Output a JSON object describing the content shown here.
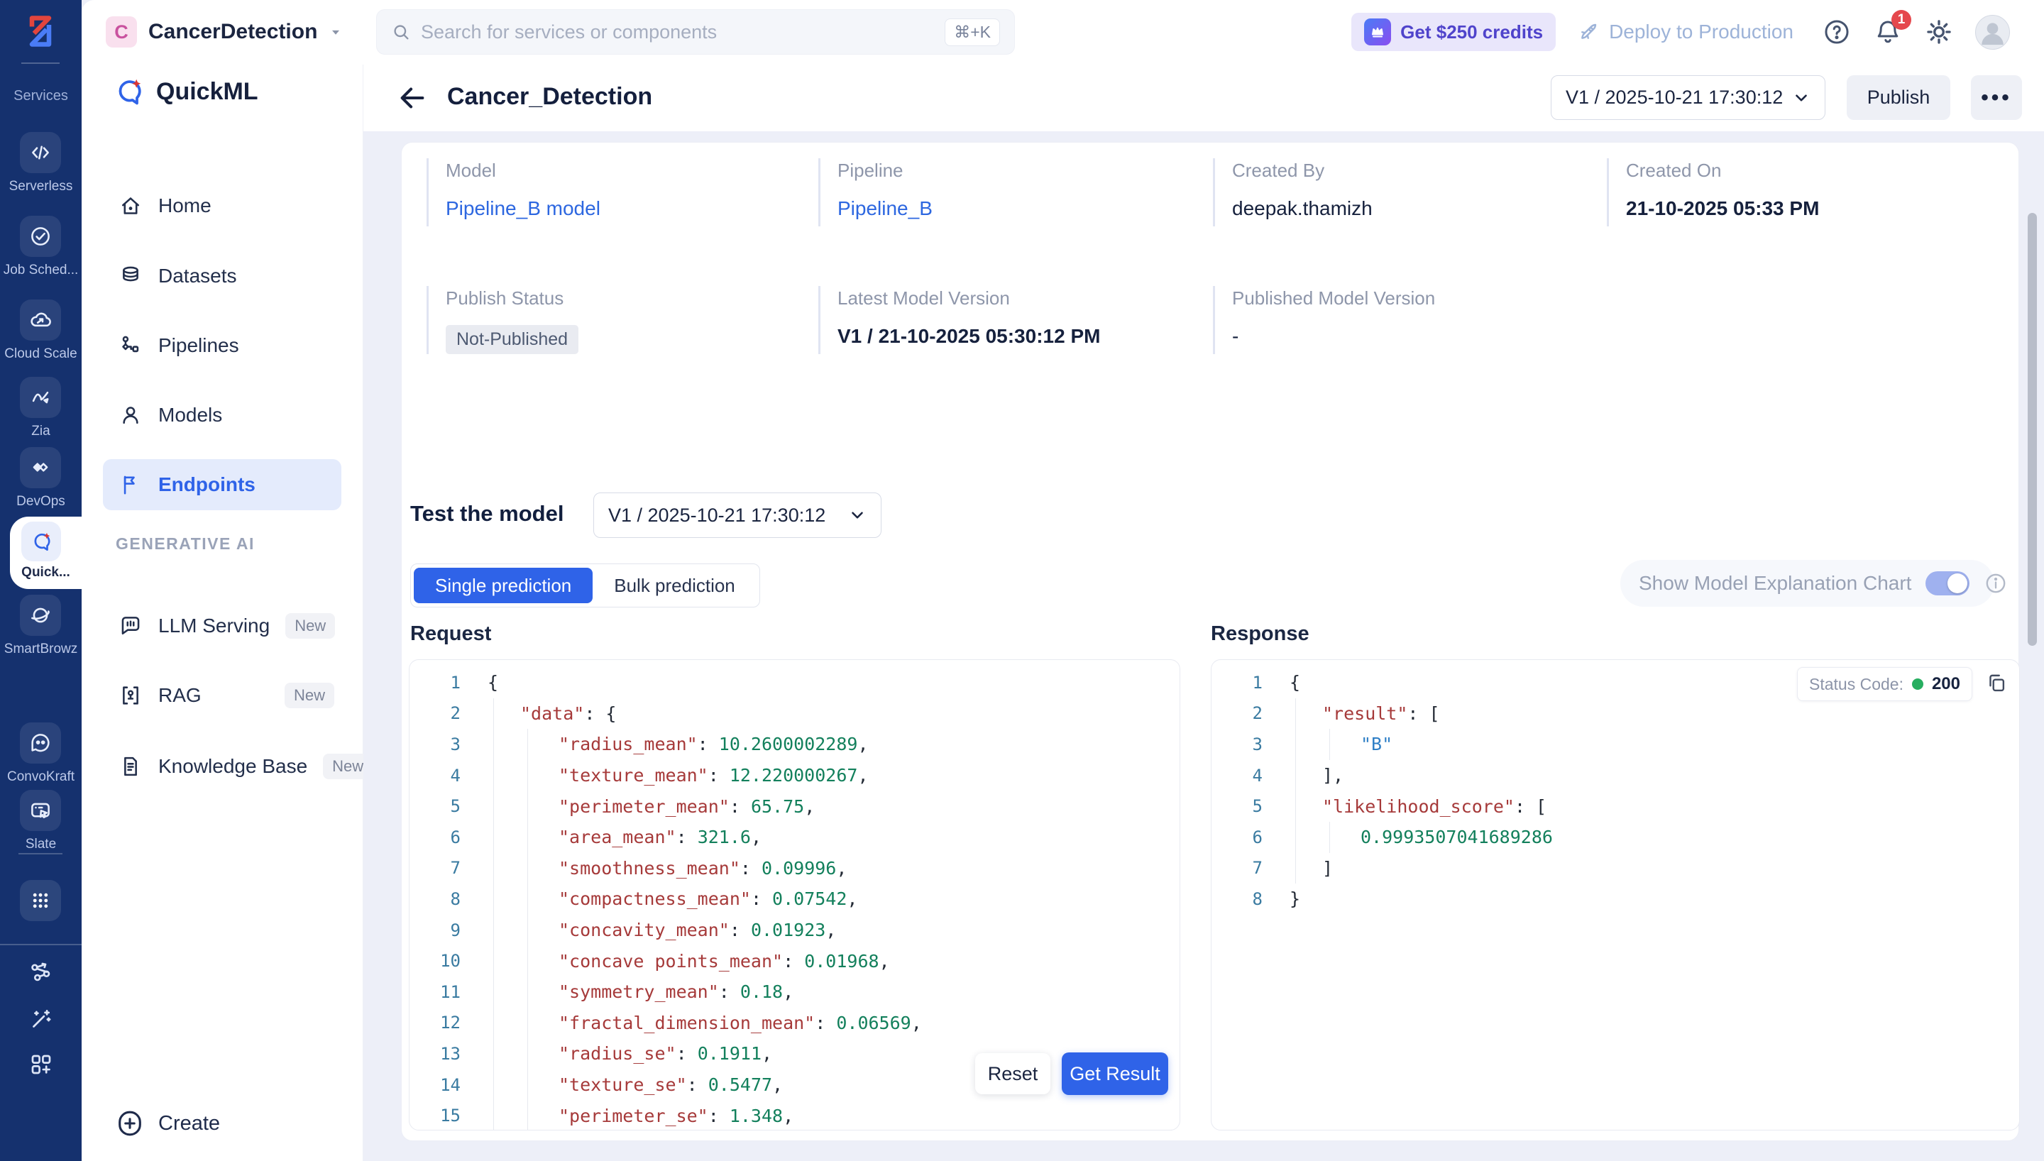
{
  "colors": {
    "accent": "#2f63e8",
    "link": "#2d67e0",
    "rail_bg": "#15316e",
    "status_green": "#27ae60",
    "notification_red": "#e5484d",
    "credits_purple": "#4f43cb",
    "code_key": "#a63a3a",
    "code_number": "#13805c",
    "code_string": "#2f7fc6",
    "code_linenumber": "#3a7ba1"
  },
  "rail": {
    "logo_icon": "zoho-logo",
    "services_label": "Services",
    "items": [
      {
        "label": "Serverless",
        "icon": "serverless"
      },
      {
        "label": "Job Sched...",
        "icon": "scheduler"
      },
      {
        "label": "Cloud Scale",
        "icon": "cloud-scale"
      },
      {
        "label": "Zia",
        "icon": "zia"
      },
      {
        "label": "DevOps",
        "icon": "devops"
      },
      {
        "label": "Quick...",
        "icon": "quickml",
        "active": true
      },
      {
        "label": "SmartBrowz",
        "icon": "smartbrowz"
      },
      {
        "label": "ConvoKraft",
        "icon": "convokraft"
      },
      {
        "label": "Slate",
        "icon": "slate"
      }
    ],
    "footer_icons": [
      "apps-grid",
      "share-network",
      "magic-wand",
      "grid-plus"
    ]
  },
  "topbar": {
    "project_initial": "C",
    "project_name": "CancerDetection",
    "search_placeholder": "Search for services or components",
    "search_shortcut": "⌘+K",
    "credits_label": "Get $250 credits",
    "deploy_label": "Deploy to Production",
    "notification_count": "1"
  },
  "sidebar": {
    "app_name": "QuickML",
    "items": [
      {
        "label": "Home",
        "icon": "home"
      },
      {
        "label": "Datasets",
        "icon": "datasets"
      },
      {
        "label": "Pipelines",
        "icon": "pipelines"
      },
      {
        "label": "Models",
        "icon": "models"
      },
      {
        "label": "Endpoints",
        "icon": "flag",
        "active": true
      }
    ],
    "section_label": "GENERATIVE AI",
    "generative_items": [
      {
        "label": "LLM Serving",
        "icon": "chat-llm",
        "badge": "New"
      },
      {
        "label": "RAG",
        "icon": "rag",
        "badge": "New"
      },
      {
        "label": "Knowledge Base",
        "icon": "document",
        "badge": "New"
      }
    ],
    "create_label": "Create"
  },
  "header": {
    "title": "Cancer_Detection",
    "version": "V1 / 2025-10-21 17:30:12",
    "publish_label": "Publish",
    "more_label": "•••"
  },
  "info": {
    "rows": [
      [
        {
          "label": "Model",
          "value": "Pipeline_B model",
          "type": "link"
        },
        {
          "label": "Pipeline",
          "value": "Pipeline_B",
          "type": "link"
        },
        {
          "label": "Created By",
          "value": "deepak.thamizh",
          "type": "text"
        },
        {
          "label": "Created On",
          "value": "21-10-2025 05:33 PM",
          "type": "strong"
        }
      ],
      [
        {
          "label": "Publish Status",
          "value": "Not-Published",
          "type": "badge"
        },
        {
          "label": "Latest Model Version",
          "value": "V1 / 21-10-2025 05:30:12 PM",
          "type": "strong"
        },
        {
          "label": "Published Model Version",
          "value": "-",
          "type": "text"
        }
      ]
    ]
  },
  "test": {
    "heading": "Test the model",
    "version": "V1 / 2025-10-21 17:30:12",
    "tabs": [
      "Single prediction",
      "Bulk prediction"
    ],
    "active_tab": 0,
    "toggle_label": "Show Model Explanation Chart",
    "toggle_on": true,
    "reset_label": "Reset",
    "get_result_label": "Get Result"
  },
  "request_code": {
    "label": "Request",
    "lines": [
      {
        "n": "1",
        "ind": 0,
        "toks": [
          [
            "p",
            "{"
          ]
        ]
      },
      {
        "n": "2",
        "ind": 1,
        "toks": [
          [
            "k",
            "\"data\""
          ],
          [
            "p",
            ": {"
          ]
        ]
      },
      {
        "n": "3",
        "ind": 2,
        "toks": [
          [
            "k",
            "\"radius_mean\""
          ],
          [
            "p",
            ": "
          ],
          [
            "n",
            "10.2600002289"
          ],
          [
            "p",
            ","
          ]
        ]
      },
      {
        "n": "4",
        "ind": 2,
        "toks": [
          [
            "k",
            "\"texture_mean\""
          ],
          [
            "p",
            ": "
          ],
          [
            "n",
            "12.220000267"
          ],
          [
            "p",
            ","
          ]
        ]
      },
      {
        "n": "5",
        "ind": 2,
        "toks": [
          [
            "k",
            "\"perimeter_mean\""
          ],
          [
            "p",
            ": "
          ],
          [
            "n",
            "65.75"
          ],
          [
            "p",
            ","
          ]
        ]
      },
      {
        "n": "6",
        "ind": 2,
        "toks": [
          [
            "k",
            "\"area_mean\""
          ],
          [
            "p",
            ": "
          ],
          [
            "n",
            "321.6"
          ],
          [
            "p",
            ","
          ]
        ]
      },
      {
        "n": "7",
        "ind": 2,
        "toks": [
          [
            "k",
            "\"smoothness_mean\""
          ],
          [
            "p",
            ": "
          ],
          [
            "n",
            "0.09996"
          ],
          [
            "p",
            ","
          ]
        ]
      },
      {
        "n": "8",
        "ind": 2,
        "toks": [
          [
            "k",
            "\"compactness_mean\""
          ],
          [
            "p",
            ": "
          ],
          [
            "n",
            "0.07542"
          ],
          [
            "p",
            ","
          ]
        ]
      },
      {
        "n": "9",
        "ind": 2,
        "toks": [
          [
            "k",
            "\"concavity_mean\""
          ],
          [
            "p",
            ": "
          ],
          [
            "n",
            "0.01923"
          ],
          [
            "p",
            ","
          ]
        ]
      },
      {
        "n": "10",
        "ind": 2,
        "toks": [
          [
            "k",
            "\"concave points_mean\""
          ],
          [
            "p",
            ": "
          ],
          [
            "n",
            "0.01968"
          ],
          [
            "p",
            ","
          ]
        ]
      },
      {
        "n": "11",
        "ind": 2,
        "toks": [
          [
            "k",
            "\"symmetry_mean\""
          ],
          [
            "p",
            ": "
          ],
          [
            "n",
            "0.18"
          ],
          [
            "p",
            ","
          ]
        ]
      },
      {
        "n": "12",
        "ind": 2,
        "toks": [
          [
            "k",
            "\"fractal_dimension_mean\""
          ],
          [
            "p",
            ": "
          ],
          [
            "n",
            "0.06569"
          ],
          [
            "p",
            ","
          ]
        ]
      },
      {
        "n": "13",
        "ind": 2,
        "toks": [
          [
            "k",
            "\"radius_se\""
          ],
          [
            "p",
            ": "
          ],
          [
            "n",
            "0.1911"
          ],
          [
            "p",
            ","
          ]
        ]
      },
      {
        "n": "14",
        "ind": 2,
        "toks": [
          [
            "k",
            "\"texture_se\""
          ],
          [
            "p",
            ": "
          ],
          [
            "n",
            "0.5477"
          ],
          [
            "p",
            ","
          ]
        ]
      },
      {
        "n": "15",
        "ind": 2,
        "toks": [
          [
            "k",
            "\"perimeter_se\""
          ],
          [
            "p",
            ": "
          ],
          [
            "n",
            "1.348"
          ],
          [
            "p",
            ","
          ]
        ]
      }
    ]
  },
  "response_code": {
    "label": "Response",
    "status_label": "Status Code:",
    "status_code": "200",
    "lines": [
      {
        "n": "1",
        "ind": 0,
        "toks": [
          [
            "p",
            "{"
          ]
        ]
      },
      {
        "n": "2",
        "ind": 1,
        "toks": [
          [
            "k",
            "\"result\""
          ],
          [
            "p",
            ": ["
          ]
        ]
      },
      {
        "n": "3",
        "ind": 2,
        "toks": [
          [
            "s",
            "\"B\""
          ]
        ]
      },
      {
        "n": "4",
        "ind": 1,
        "toks": [
          [
            "p",
            "],"
          ]
        ]
      },
      {
        "n": "5",
        "ind": 1,
        "toks": [
          [
            "k",
            "\"likelihood_score\""
          ],
          [
            "p",
            ": ["
          ]
        ]
      },
      {
        "n": "6",
        "ind": 2,
        "toks": [
          [
            "n",
            "0.9993507041689286"
          ]
        ]
      },
      {
        "n": "7",
        "ind": 1,
        "toks": [
          [
            "p",
            "]"
          ]
        ]
      },
      {
        "n": "8",
        "ind": 0,
        "toks": [
          [
            "p",
            "}"
          ]
        ]
      }
    ]
  }
}
